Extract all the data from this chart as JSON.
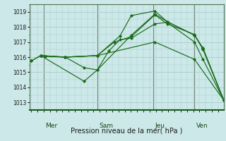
{
  "bg_color": "#cce8e8",
  "grid_color": "#aacccc",
  "line_color": "#1a6b1a",
  "xlabel": "Pression niveau de la mer( hPa )",
  "ylim": [
    1012.5,
    1019.5
  ],
  "yticks": [
    1013,
    1014,
    1015,
    1016,
    1017,
    1018,
    1019
  ],
  "day_labels": [
    "Mer",
    "Sam",
    "Jeu",
    "Ven"
  ],
  "day_positions": [
    0.075,
    0.36,
    0.655,
    0.875
  ],
  "vline_positions": [
    0.065,
    0.35,
    0.645,
    0.865
  ],
  "xlim": [
    -0.01,
    1.02
  ],
  "series": [
    [
      0.0,
      1015.75,
      0.05,
      1016.1,
      0.075,
      1016.05,
      0.18,
      1016.0,
      0.28,
      1015.3,
      0.35,
      1015.15,
      0.41,
      1016.4,
      0.47,
      1017.15,
      0.53,
      1017.25,
      0.655,
      1018.2,
      0.72,
      1018.3,
      0.865,
      1017.0,
      0.91,
      1015.85,
      1.02,
      1013.15
    ],
    [
      0.05,
      1016.1,
      0.18,
      1016.0,
      0.35,
      1016.1,
      0.47,
      1017.4,
      0.53,
      1018.75,
      0.655,
      1019.05,
      0.72,
      1018.35,
      0.865,
      1017.45,
      0.91,
      1016.55,
      1.02,
      1013.15
    ],
    [
      0.05,
      1016.1,
      0.18,
      1016.0,
      0.35,
      1016.1,
      0.44,
      1017.0,
      0.53,
      1017.35,
      0.655,
      1018.8,
      0.72,
      1018.2,
      0.865,
      1017.5,
      0.91,
      1016.5,
      1.02,
      1013.15
    ],
    [
      0.0,
      1015.75,
      0.05,
      1016.1,
      0.18,
      1016.0,
      0.35,
      1016.1,
      0.655,
      1017.0,
      0.865,
      1015.85,
      1.02,
      1013.15
    ],
    [
      0.05,
      1016.1,
      0.28,
      1014.4,
      0.35,
      1015.15,
      0.53,
      1017.45,
      0.655,
      1018.85,
      0.72,
      1018.35,
      0.865,
      1017.45,
      0.91,
      1016.6,
      1.02,
      1013.15
    ]
  ]
}
